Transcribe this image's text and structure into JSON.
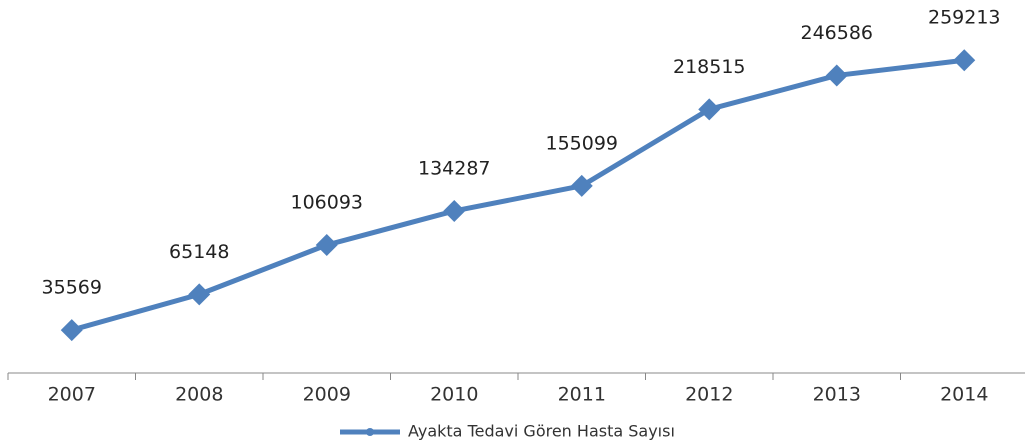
{
  "chart_data": {
    "type": "line",
    "categories": [
      "2007",
      "2008",
      "2009",
      "2010",
      "2011",
      "2012",
      "2013",
      "2014"
    ],
    "series": [
      {
        "name": "Ayakta Tedavi Gören Hasta Sayısı",
        "color": "#4f81bd",
        "values": [
          35569,
          65148,
          106093,
          134287,
          155099,
          218515,
          246586,
          259213
        ]
      }
    ],
    "ylim": [
      0,
      300000
    ],
    "grid": false,
    "legend": "bottom"
  }
}
